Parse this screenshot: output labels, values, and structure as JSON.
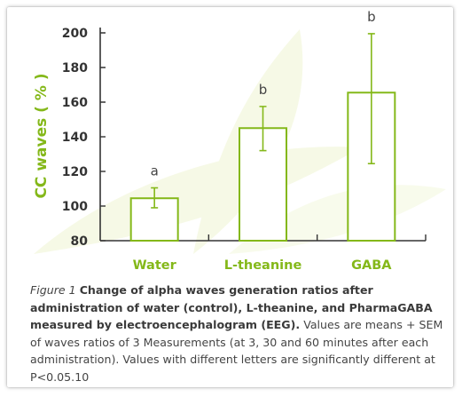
{
  "colors": {
    "accent": "#84b819",
    "axis": "#333333",
    "background_leaf": "#f6f9e6",
    "text": "#444444"
  },
  "chart_data": {
    "type": "bar",
    "categories": [
      "Water",
      "L-theanine",
      "GABA"
    ],
    "values": [
      104.5,
      145,
      165.5
    ],
    "errors": [
      {
        "low": 99,
        "high": 110.5
      },
      {
        "low": 132,
        "high": 157.5
      },
      {
        "low": 124.5,
        "high": 199.5
      }
    ],
    "letters": [
      "a",
      "b",
      "b"
    ],
    "ylabel": "CC waves ( % )",
    "xlabel": "",
    "ylim": [
      80,
      200
    ],
    "yticks": [
      80,
      100,
      120,
      140,
      160,
      180,
      200
    ]
  },
  "caption": {
    "figure_label": "Figure 1",
    "title_bold": "Change of alpha waves generation ratios after administration of water (control), L-theanine, and PharmaGABA measured by electroencephalogram (EEG).",
    "body": "Values are means + SEM of waves ratios of 3 Measurements (at 3, 30 and 60 minutes after each administration). Values with different letters are significantly different at P<0.05.10"
  }
}
